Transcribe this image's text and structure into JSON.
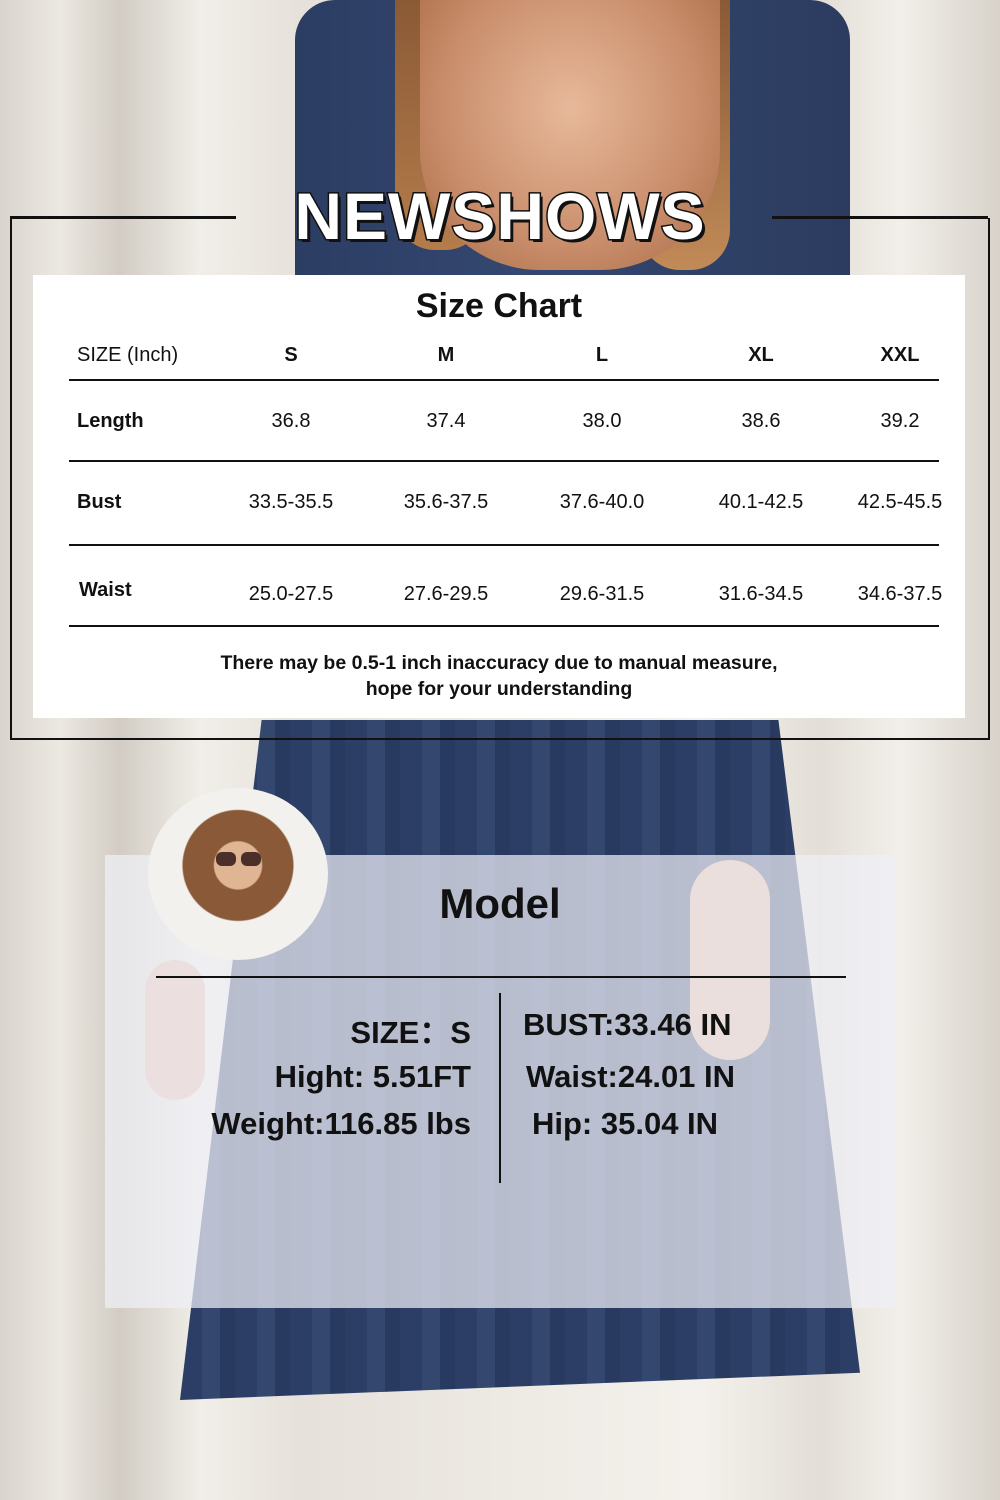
{
  "brand": "NEWSHOWS",
  "size_chart": {
    "title": "Size Chart",
    "header_label": "SIZE (Inch)",
    "sizes": [
      "S",
      "M",
      "L",
      "XL",
      "XXL"
    ],
    "rows": [
      {
        "label": "Length",
        "values": [
          "36.8",
          "37.4",
          "38.0",
          "38.6",
          "39.2"
        ]
      },
      {
        "label": "Bust",
        "values": [
          "33.5-35.5",
          "35.6-37.5",
          "37.6-40.0",
          "40.1-42.5",
          "42.5-45.5"
        ]
      },
      {
        "label": "Waist",
        "values": [
          "25.0-27.5",
          "27.6-29.5",
          "29.6-31.5",
          "31.6-34.5",
          "34.6-37.5"
        ]
      }
    ],
    "note_line1": "There may be 0.5-1 inch inaccuracy due to manual measure,",
    "note_line2": "hope for your understanding"
  },
  "model": {
    "title": "Model",
    "left": [
      "SIZE：S",
      "Hight: 5.51FT",
      "Weight:116.85 lbs"
    ],
    "right": [
      "BUST:33.46 IN",
      "Waist:24.01 IN",
      "Hip: 35.04 IN"
    ]
  },
  "colors": {
    "dress": "#2d3e66",
    "text": "#111111",
    "card": "#ffffff"
  }
}
